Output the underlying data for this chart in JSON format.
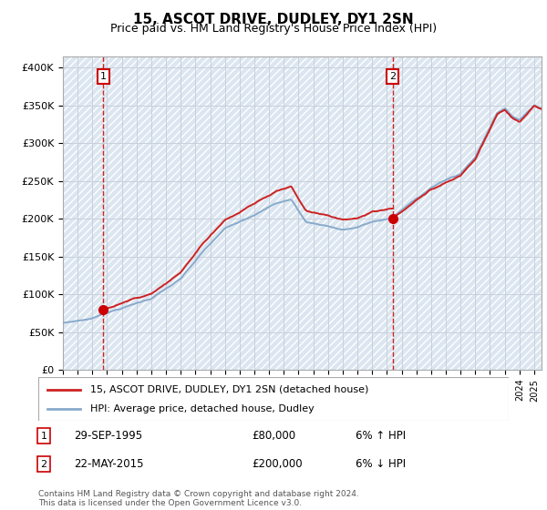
{
  "title": "15, ASCOT DRIVE, DUDLEY, DY1 2SN",
  "subtitle": "Price paid vs. HM Land Registry's House Price Index (HPI)",
  "legend_line1": "15, ASCOT DRIVE, DUDLEY, DY1 2SN (detached house)",
  "legend_line2": "HPI: Average price, detached house, Dudley",
  "sale1_date": "29-SEP-1995",
  "sale1_price": "£80,000",
  "sale1_hpi": "6% ↑ HPI",
  "sale1_year": 1995.75,
  "sale1_value": 80000,
  "sale2_date": "22-MAY-2015",
  "sale2_price": "£200,000",
  "sale2_hpi": "6% ↓ HPI",
  "sale2_year": 2015.38,
  "sale2_value": 200000,
  "ylabel_ticks": [
    "£0",
    "£50K",
    "£100K",
    "£150K",
    "£200K",
    "£250K",
    "£300K",
    "£350K",
    "£400K"
  ],
  "ytick_values": [
    0,
    50000,
    100000,
    150000,
    200000,
    250000,
    300000,
    350000,
    400000
  ],
  "ylim": [
    0,
    415000
  ],
  "xlim_start": 1993.0,
  "xlim_end": 2025.5,
  "line_color_price": "#cc2222",
  "line_color_hpi": "#88aacc",
  "dot_color": "#cc0000",
  "vline_color": "#cc0000",
  "grid_color": "#c8d0dc",
  "bg_color": "#dce6f0",
  "footnote": "Contains HM Land Registry data © Crown copyright and database right 2024.\nThis data is licensed under the Open Government Licence v3.0."
}
